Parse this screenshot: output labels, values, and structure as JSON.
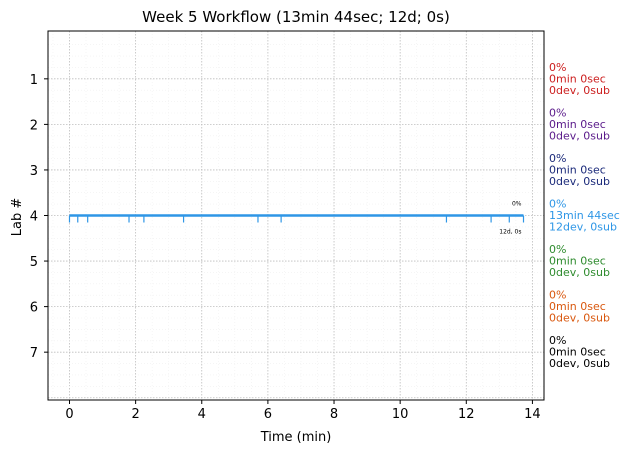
{
  "chart_data": {
    "type": "timeline",
    "title": "Week 5 Workflow (13min 44sec; 12d; 0s)",
    "xlabel": "Time (min)",
    "ylabel": "Lab #",
    "xlim": [
      -0.65,
      14.35
    ],
    "ylim": [
      8.05,
      -0.05
    ],
    "xticks": [
      0,
      2,
      4,
      6,
      8,
      10,
      12,
      14
    ],
    "yticks": [
      1,
      2,
      3,
      4,
      5,
      6,
      7
    ],
    "grid": true,
    "series": [
      {
        "lab": 4,
        "color": "#2e96e6",
        "start": 0,
        "end": 13.73,
        "events": [
          0,
          0.25,
          0.55,
          1.8,
          2.25,
          3.45,
          5.7,
          6.4,
          11.4,
          12.75,
          13.3,
          13.73
        ],
        "label_top": "0%",
        "label_bottom": "12d, 0s"
      }
    ],
    "side_labels": [
      {
        "lab": 1,
        "lines": [
          "0%",
          "0min 0sec",
          "0dev, 0sub"
        ],
        "color": "#cc1f1f"
      },
      {
        "lab": 2,
        "lines": [
          "0%",
          "0min 0sec",
          "0dev, 0sub"
        ],
        "color": "#5a1a8a"
      },
      {
        "lab": 3,
        "lines": [
          "0%",
          "0min 0sec",
          "0dev, 0sub"
        ],
        "color": "#1b2a7a"
      },
      {
        "lab": 4,
        "lines": [
          "0%",
          "13min 44sec",
          "12dev, 0sub"
        ],
        "color": "#2e96e6"
      },
      {
        "lab": 5,
        "lines": [
          "0%",
          "0min 0sec",
          "0dev, 0sub"
        ],
        "color": "#2e8b2e"
      },
      {
        "lab": 6,
        "lines": [
          "0%",
          "0min 0sec",
          "0dev, 0sub"
        ],
        "color": "#d9580f"
      },
      {
        "lab": 7,
        "lines": [
          "0%",
          "0min 0sec",
          "0dev, 0sub"
        ],
        "color": "#000000"
      }
    ]
  }
}
